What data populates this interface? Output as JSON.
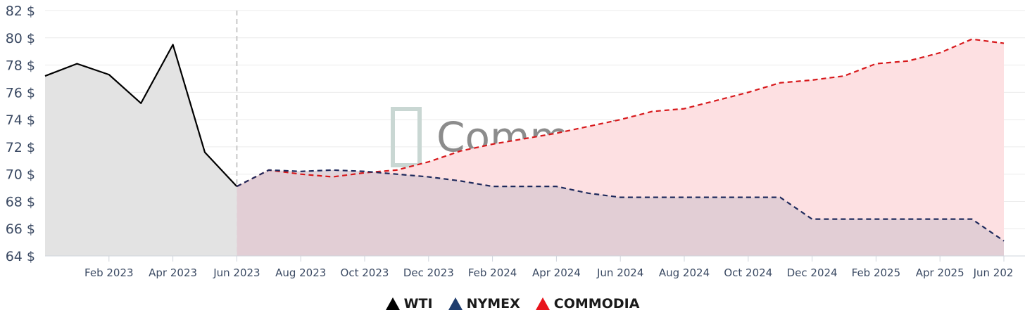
{
  "chart_data": {
    "type": "line",
    "x_labels": [
      "Feb 2023",
      "Apr 2023",
      "Jun 2023",
      "Aug 2023",
      "Oct 2023",
      "Dec 2023",
      "Feb 2024",
      "Apr 2024",
      "Jun 2024",
      "Aug 2024",
      "Oct 2024",
      "Dec 2024",
      "Feb 2025",
      "Apr 2025",
      "Jun 202"
    ],
    "y_ticks": [
      "64 $",
      "66 $",
      "68 $",
      "70 $",
      "72 $",
      "74 $",
      "76 $",
      "78 $",
      "80 $",
      "82 $"
    ],
    "ylim": [
      64,
      82
    ],
    "x_start": "2022-12",
    "x_end": "2025-06",
    "grid": true,
    "legend_position": "bottom",
    "watermark": "Commodia",
    "series": [
      {
        "name": "WTI",
        "color": "#000000",
        "dash": "solid",
        "fill": "#e3e3e3",
        "points": [
          [
            "2022-12",
            77.2
          ],
          [
            "2023-01",
            78.1
          ],
          [
            "2023-02",
            77.3
          ],
          [
            "2023-03",
            75.2
          ],
          [
            "2023-04",
            79.5
          ],
          [
            "2023-05",
            71.6
          ],
          [
            "2023-06",
            69.1
          ]
        ]
      },
      {
        "name": "NYMEX",
        "color": "#1f2a5c",
        "dash": "dashed",
        "fill": "#d8c8d0",
        "points": [
          [
            "2023-06",
            69.1
          ],
          [
            "2023-07",
            70.3
          ],
          [
            "2023-08",
            70.2
          ],
          [
            "2023-09",
            70.3
          ],
          [
            "2023-10",
            70.2
          ],
          [
            "2023-11",
            70.0
          ],
          [
            "2023-12",
            69.8
          ],
          [
            "2024-01",
            69.5
          ],
          [
            "2024-02",
            69.1
          ],
          [
            "2024-03",
            69.1
          ],
          [
            "2024-04",
            69.1
          ],
          [
            "2024-05",
            68.6
          ],
          [
            "2024-06",
            68.3
          ],
          [
            "2024-07",
            68.3
          ],
          [
            "2024-08",
            68.3
          ],
          [
            "2024-09",
            68.3
          ],
          [
            "2024-10",
            68.3
          ],
          [
            "2024-11",
            68.3
          ],
          [
            "2024-12",
            66.7
          ],
          [
            "2025-01",
            66.7
          ],
          [
            "2025-02",
            66.7
          ],
          [
            "2025-03",
            66.7
          ],
          [
            "2025-04",
            66.7
          ],
          [
            "2025-05",
            66.7
          ],
          [
            "2025-06",
            65.1
          ]
        ]
      },
      {
        "name": "COMMODIA",
        "color": "#d7191c",
        "dash": "dashed",
        "fill": "#fde0e2",
        "points": [
          [
            "2023-06",
            69.1
          ],
          [
            "2023-07",
            70.3
          ],
          [
            "2023-08",
            70.0
          ],
          [
            "2023-09",
            69.8
          ],
          [
            "2023-10",
            70.1
          ],
          [
            "2023-11",
            70.3
          ],
          [
            "2023-12",
            70.9
          ],
          [
            "2024-01",
            71.7
          ],
          [
            "2024-02",
            72.2
          ],
          [
            "2024-03",
            72.6
          ],
          [
            "2024-04",
            73.0
          ],
          [
            "2024-05",
            73.5
          ],
          [
            "2024-06",
            74.0
          ],
          [
            "2024-07",
            74.6
          ],
          [
            "2024-08",
            74.8
          ],
          [
            "2024-09",
            75.4
          ],
          [
            "2024-10",
            76.0
          ],
          [
            "2024-11",
            76.7
          ],
          [
            "2024-12",
            76.9
          ],
          [
            "2025-01",
            77.2
          ],
          [
            "2025-02",
            78.1
          ],
          [
            "2025-03",
            78.3
          ],
          [
            "2025-04",
            78.9
          ],
          [
            "2025-05",
            79.9
          ],
          [
            "2025-06",
            79.6
          ]
        ]
      }
    ]
  }
}
